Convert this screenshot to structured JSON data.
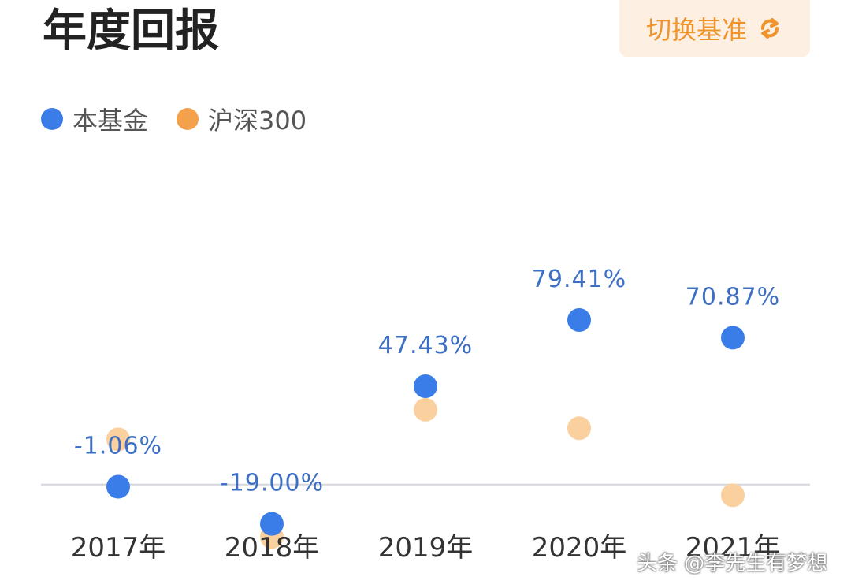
{
  "header": {
    "title": "年度回报",
    "switch_label": "切换基准"
  },
  "icons": {
    "switch_icon": "refresh-icon"
  },
  "colors": {
    "fund": "#3b7de8",
    "benchmark": "#f5a04a",
    "benchmark_faded": "#fbd09f",
    "label": "#3d6fc4",
    "baseline": "#d3d6dc"
  },
  "watermark": "头条 @李先生有梦想",
  "chart_data": {
    "type": "scatter",
    "categories": [
      "2017年",
      "2018年",
      "2019年",
      "2020年",
      "2021年"
    ],
    "series": [
      {
        "name": "本基金",
        "values": [
          -1.06,
          -19.0,
          47.43,
          79.41,
          70.87
        ],
        "labels": [
          "-1.06%",
          "-19.00%",
          "47.43%",
          "79.41%",
          "70.87%"
        ]
      },
      {
        "name": "沪深300",
        "values": [
          21.8,
          -25.3,
          36.1,
          27.2,
          -5.2
        ]
      }
    ],
    "ylim": [
      -45,
      165
    ],
    "xlabel": "",
    "ylabel": "",
    "grid": false,
    "legend_position": "top-left"
  }
}
